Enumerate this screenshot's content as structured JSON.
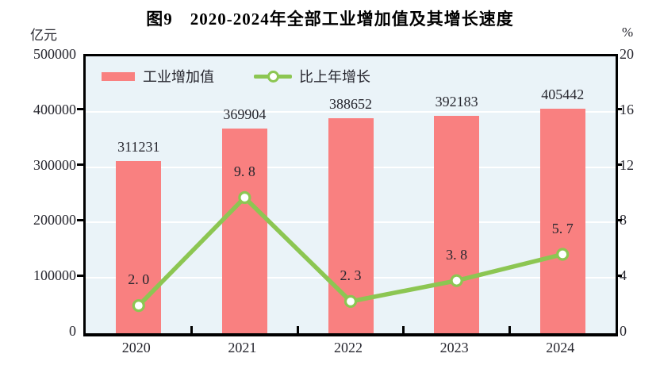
{
  "title": "图9　2020-2024年全部工业增加值及其增长速度",
  "left_axis": {
    "unit": "亿元",
    "ticks": [
      "0",
      "100000",
      "200000",
      "300000",
      "400000",
      "500000"
    ],
    "min": 0,
    "max": 500000
  },
  "right_axis": {
    "unit": "%",
    "ticks": [
      "0",
      "4",
      "8",
      "12",
      "16",
      "20"
    ],
    "min": 0,
    "max": 20
  },
  "legend": [
    {
      "label": "工业增加值",
      "type": "bar"
    },
    {
      "label": "比上年增长",
      "type": "line"
    }
  ],
  "chart_data": {
    "type": "bar",
    "subtype": "bar+line combo",
    "title": "图9　2020-2024年全部工业增加值及其增长速度",
    "categories": [
      "2020",
      "2021",
      "2022",
      "2023",
      "2024"
    ],
    "series": [
      {
        "name": "工业增加值",
        "type": "bar",
        "axis": "left",
        "values": [
          311231,
          369904,
          388652,
          392183,
          405442
        ],
        "labels": [
          "311231",
          "369904",
          "388652",
          "392183",
          "405442"
        ],
        "color": "#F98080"
      },
      {
        "name": "比上年增长",
        "type": "line",
        "axis": "right",
        "values": [
          2.0,
          9.8,
          2.3,
          3.8,
          5.7
        ],
        "labels": [
          "2. 0",
          "9. 8",
          "2. 3",
          "3. 8",
          "5. 7"
        ],
        "color": "#8CC652",
        "marker": "circle-white-fill"
      }
    ],
    "xlabel": "",
    "ylabel_left": "亿元",
    "ylabel_right": "%",
    "left_ylim": [
      0,
      500000
    ],
    "right_ylim": [
      0,
      20
    ],
    "grid": true,
    "grid_color": "#FFFFFF",
    "legend_position": "top-left-inside",
    "plot_background": "#EAF3F8"
  },
  "colors": {
    "bar": "#F98080",
    "line": "#8CC652",
    "plot_background": "#EAF3F8",
    "gridline": "#FFFFFF",
    "text": "#26262E",
    "frame": "#000000"
  }
}
